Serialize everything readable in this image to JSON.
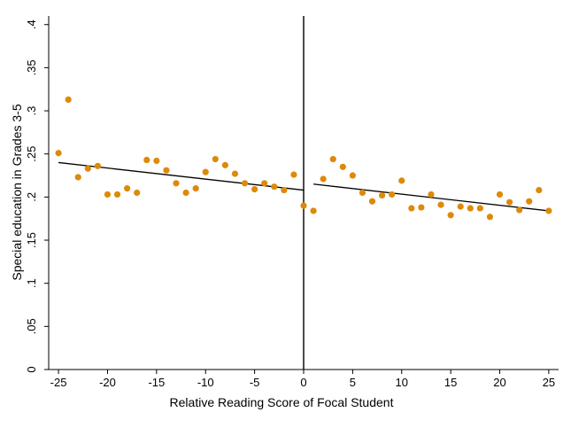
{
  "chart_data": {
    "type": "scatter",
    "xlabel": "Relative Reading Score of Focal Student",
    "ylabel": "Special education in Grades 3-5",
    "xlim": [
      -26,
      26
    ],
    "ylim": [
      0,
      0.41
    ],
    "xticks": [
      -25,
      -20,
      -15,
      -10,
      -5,
      0,
      5,
      10,
      15,
      20,
      25
    ],
    "xtick_labels": [
      "-25",
      "-20",
      "-15",
      "-10",
      "-5",
      "0",
      "5",
      "10",
      "15",
      "20",
      "25"
    ],
    "yticks": [
      0,
      0.05,
      0.1,
      0.15,
      0.2,
      0.25,
      0.3,
      0.35,
      0.4
    ],
    "ytick_labels": [
      "0",
      ".05",
      ".1",
      ".15",
      ".2",
      ".25",
      ".3",
      ".35",
      ".4"
    ],
    "grid": false,
    "cutoff_x": 0,
    "series": [
      {
        "x": [
          -25,
          -24,
          -23,
          -22,
          -21,
          -20,
          -19,
          -18,
          -17,
          -16,
          -15,
          -14,
          -13,
          -12,
          -11,
          -10,
          -9,
          -8,
          -7,
          -6,
          -5,
          -4,
          -3,
          -2,
          -1,
          0,
          1,
          2,
          3,
          4,
          5,
          6,
          7,
          8,
          9,
          10,
          11,
          12,
          13,
          14,
          15,
          16,
          17,
          18,
          19,
          20,
          21,
          22,
          23,
          24,
          25
        ],
        "y": [
          0.251,
          0.313,
          0.223,
          0.233,
          0.236,
          0.203,
          0.203,
          0.21,
          0.205,
          0.243,
          0.242,
          0.231,
          0.216,
          0.205,
          0.21,
          0.229,
          0.244,
          0.237,
          0.227,
          0.216,
          0.209,
          0.216,
          0.212,
          0.208,
          0.226,
          0.19,
          0.184,
          0.221,
          0.244,
          0.235,
          0.225,
          0.205,
          0.195,
          0.202,
          0.203,
          0.219,
          0.187,
          0.188,
          0.203,
          0.191,
          0.179,
          0.189,
          0.187,
          0.187,
          0.177,
          0.203,
          0.194,
          0.185,
          0.195,
          0.208,
          0.184
        ],
        "color": "#dd8a0a"
      }
    ],
    "fit_lines": [
      {
        "x": [
          -25,
          0
        ],
        "y": [
          0.24,
          0.208
        ],
        "color": "#000000"
      },
      {
        "x": [
          1,
          25
        ],
        "y": [
          0.215,
          0.184
        ],
        "color": "#000000"
      }
    ]
  }
}
